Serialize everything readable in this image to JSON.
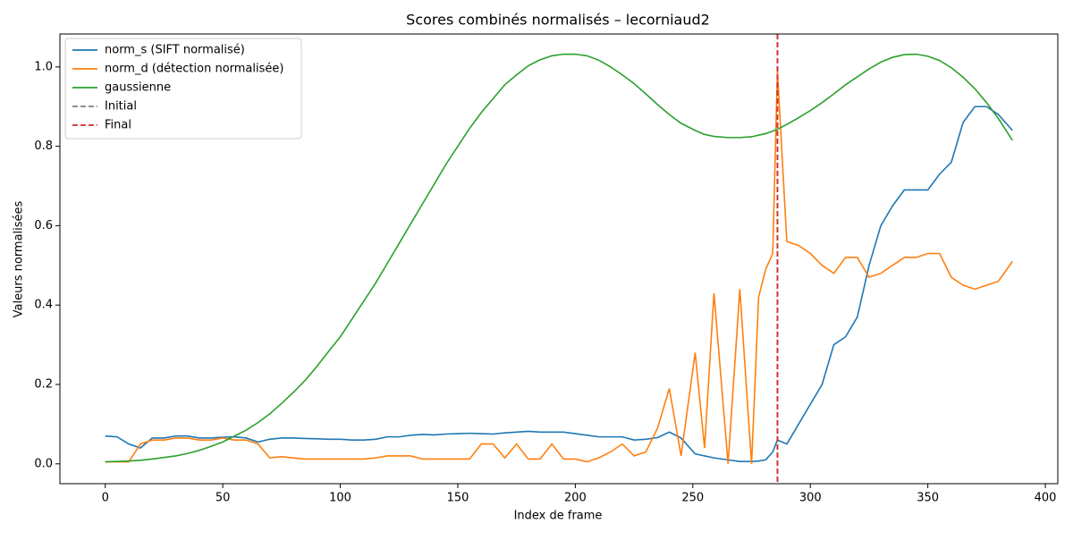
{
  "chart_data": {
    "type": "line",
    "title": "Scores combinés normalisés – lecorniaud2",
    "xlabel": "Index de frame",
    "ylabel": "Valeurs normalisées",
    "x": [
      0,
      5,
      10,
      15,
      20,
      25,
      30,
      35,
      40,
      45,
      50,
      55,
      60,
      65,
      70,
      75,
      80,
      85,
      90,
      95,
      100,
      105,
      110,
      115,
      120,
      125,
      130,
      135,
      140,
      145,
      150,
      155,
      160,
      165,
      170,
      175,
      180,
      185,
      190,
      195,
      200,
      205,
      210,
      215,
      220,
      225,
      230,
      235,
      240,
      245,
      251,
      255,
      259,
      265,
      270,
      275,
      278,
      281,
      284,
      286,
      290,
      295,
      300,
      305,
      310,
      315,
      320,
      325,
      330,
      335,
      340,
      345,
      350,
      355,
      360,
      365,
      370,
      375,
      380,
      386
    ],
    "series": [
      {
        "name": "norm_s (SIFT normalisé)",
        "color": "#1f77b4",
        "values": [
          0.07,
          0.068,
          0.05,
          0.04,
          0.065,
          0.065,
          0.07,
          0.07,
          0.065,
          0.065,
          0.067,
          0.068,
          0.065,
          0.055,
          0.062,
          0.065,
          0.065,
          0.064,
          0.063,
          0.062,
          0.062,
          0.06,
          0.06,
          0.062,
          0.068,
          0.068,
          0.072,
          0.074,
          0.073,
          0.075,
          0.076,
          0.077,
          0.076,
          0.075,
          0.078,
          0.08,
          0.082,
          0.08,
          0.08,
          0.08,
          0.076,
          0.072,
          0.068,
          0.068,
          0.068,
          0.06,
          0.062,
          0.066,
          0.08,
          0.065,
          0.025,
          0.02,
          0.015,
          0.01,
          0.006,
          0.006,
          0.007,
          0.01,
          0.03,
          0.06,
          0.05,
          0.1,
          0.15,
          0.2,
          0.3,
          0.32,
          0.37,
          0.5,
          0.6,
          0.65,
          0.69,
          0.69,
          0.69,
          0.73,
          0.76,
          0.86,
          0.9,
          0.9,
          0.88,
          0.84
        ]
      },
      {
        "name": "norm_d (détection normalisée)",
        "color": "#ff7f0e",
        "values": [
          0.005,
          0.005,
          0.005,
          0.05,
          0.06,
          0.06,
          0.065,
          0.065,
          0.06,
          0.06,
          0.065,
          0.06,
          0.06,
          0.05,
          0.015,
          0.018,
          0.015,
          0.012,
          0.012,
          0.012,
          0.012,
          0.012,
          0.012,
          0.015,
          0.02,
          0.02,
          0.02,
          0.012,
          0.012,
          0.012,
          0.012,
          0.012,
          0.05,
          0.05,
          0.015,
          0.05,
          0.012,
          0.012,
          0.05,
          0.012,
          0.012,
          0.005,
          0.015,
          0.03,
          0.05,
          0.02,
          0.03,
          0.09,
          0.19,
          0.02,
          0.28,
          0.04,
          0.43,
          0.0,
          0.44,
          0.0,
          0.42,
          0.49,
          0.53,
          0.99,
          0.56,
          0.55,
          0.53,
          0.5,
          0.48,
          0.52,
          0.52,
          0.47,
          0.48,
          0.5,
          0.52,
          0.52,
          0.53,
          0.53,
          0.47,
          0.45,
          0.44,
          0.45,
          0.46,
          0.51
        ]
      },
      {
        "name": "gaussienne",
        "color": "#2ca02c",
        "values": [
          0.005,
          0.006,
          0.007,
          0.009,
          0.012,
          0.016,
          0.02,
          0.026,
          0.034,
          0.044,
          0.055,
          0.07,
          0.085,
          0.104,
          0.126,
          0.152,
          0.18,
          0.21,
          0.245,
          0.283,
          0.32,
          0.365,
          0.41,
          0.455,
          0.505,
          0.555,
          0.605,
          0.655,
          0.705,
          0.755,
          0.8,
          0.845,
          0.885,
          0.92,
          0.955,
          0.98,
          1.003,
          1.018,
          1.028,
          1.032,
          1.032,
          1.028,
          1.017,
          1.0,
          0.98,
          0.958,
          0.932,
          0.905,
          0.88,
          0.858,
          0.84,
          0.83,
          0.825,
          0.822,
          0.822,
          0.824,
          0.828,
          0.832,
          0.838,
          0.843,
          0.855,
          0.872,
          0.89,
          0.91,
          0.932,
          0.955,
          0.975,
          0.995,
          1.012,
          1.024,
          1.031,
          1.032,
          1.027,
          1.016,
          0.998,
          0.974,
          0.945,
          0.91,
          0.87,
          0.815
        ]
      }
    ],
    "markers": [
      {
        "name": "Initial",
        "color": "#7f7f7f",
        "x": 286
      },
      {
        "name": "Final",
        "color": "#d62728",
        "x": 286
      }
    ],
    "xlim": [
      -19.3,
      405.3
    ],
    "ylim": [
      -0.05,
      1.083
    ],
    "xticks": [
      0,
      50,
      100,
      150,
      200,
      250,
      300,
      350,
      400
    ],
    "yticks": [
      {
        "value": 0,
        "label": "0.0"
      },
      {
        "value": 0.2,
        "label": "0.2"
      },
      {
        "value": 0.4,
        "label": "0.4"
      },
      {
        "value": 0.6,
        "label": "0.6"
      },
      {
        "value": 0.8,
        "label": "0.8"
      },
      {
        "value": 1,
        "label": "1.0"
      }
    ],
    "legend": "upper left"
  }
}
